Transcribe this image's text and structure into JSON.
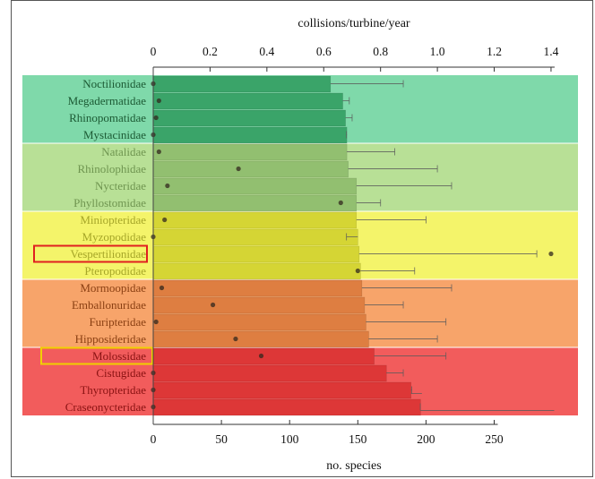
{
  "chart_data": {
    "type": "bar",
    "orientation": "horizontal",
    "top_axis_title": "collisions/turbine/year",
    "bottom_axis_title": "no. species",
    "top_ticks": [
      "0",
      "0.2",
      "0.4",
      "0.6",
      "0.8",
      "1.0",
      "1.2",
      "1.4"
    ],
    "top_xlim": [
      0,
      1.4
    ],
    "bottom_ticks": [
      "0",
      "50",
      "100",
      "150",
      "200",
      "250"
    ],
    "bottom_xlim": [
      0,
      250
    ],
    "categories": [
      "Noctilionidae",
      "Megadermatidae",
      "Rhinopomatidae",
      "Mystacinidae",
      "Natalidae",
      "Rhinolophidae",
      "Nycteridae",
      "Phyllostomidae",
      "Miniopteridae",
      "Myzopodidae",
      "Vespertilionidae",
      "Pteropodidae",
      "Mormoopidae",
      "Emballonuridae",
      "Furipteridae",
      "Hipposideridae",
      "Molossidae",
      "Cistugidae",
      "Thyropteridae",
      "Craseonycteridae"
    ],
    "series": [
      {
        "measure": "no. species (cumulative)",
        "values": [
          130,
          139,
          141,
          142,
          142,
          143,
          149,
          149,
          149,
          150,
          151,
          152,
          153,
          155,
          156,
          158,
          162,
          171,
          189,
          196
        ]
      },
      {
        "measure": "collisions/turbine/year",
        "points": [
          0.0,
          0.02,
          0.01,
          0.0,
          0.02,
          0.3,
          0.05,
          0.66,
          0.04,
          0.0,
          1.4,
          0.72,
          0.03,
          0.21,
          0.01,
          0.29,
          0.38,
          0.0,
          0.0,
          0.0
        ],
        "upper": [
          0.88,
          0.69,
          0.7,
          0.68,
          0.85,
          1.0,
          1.05,
          0.8,
          0.96,
          0.68,
          1.35,
          0.92,
          1.05,
          0.88,
          1.03,
          1.0,
          1.03,
          0.88,
          0.91,
          0.94
        ]
      },
      {
        "measure": "no. species (bar end error)",
        "upper": [
          null,
          null,
          null,
          null,
          null,
          null,
          null,
          null,
          null,
          null,
          null,
          null,
          null,
          null,
          null,
          null,
          null,
          null,
          197,
          294
        ]
      }
    ],
    "groups": [
      {
        "from": 0,
        "to": 3,
        "color": "#7fd9aa"
      },
      {
        "from": 4,
        "to": 7,
        "color": "#b8e096"
      },
      {
        "from": 8,
        "to": 11,
        "color": "#f4f46a"
      },
      {
        "from": 12,
        "to": 15,
        "color": "#f7a46a"
      },
      {
        "from": 16,
        "to": 19,
        "color": "#f25c5c"
      }
    ],
    "bar_colors": [
      "#2e9a5e",
      "#2e9a5e",
      "#2e9a5e",
      "#2e9a5e",
      "#8bb86a",
      "#8bb86a",
      "#8bb86a",
      "#8bb86a",
      "#cfcf2a",
      "#cfcf2a",
      "#cfcf2a",
      "#cfcf2a",
      "#d9783a",
      "#d9783a",
      "#d9783a",
      "#d9783a",
      "#d93030",
      "#d93030",
      "#d93030",
      "#d93030"
    ],
    "label_colors": [
      "#1c5a34",
      "#1c5a34",
      "#1c5a34",
      "#1c5a34",
      "#6f9550",
      "#6f9550",
      "#6f9550",
      "#6f9550",
      "#a6a628",
      "#a6a628",
      "#a6a628",
      "#a6a628",
      "#8a3f12",
      "#8a3f12",
      "#8a3f12",
      "#8a3f12",
      "#8a1212",
      "#8a1212",
      "#8a1212",
      "#8a1212"
    ],
    "highlighted": [
      {
        "category": "Vespertilionidae",
        "box_color": "#e02020"
      },
      {
        "category": "Molossidae",
        "box_color": "#f0d000"
      }
    ]
  }
}
